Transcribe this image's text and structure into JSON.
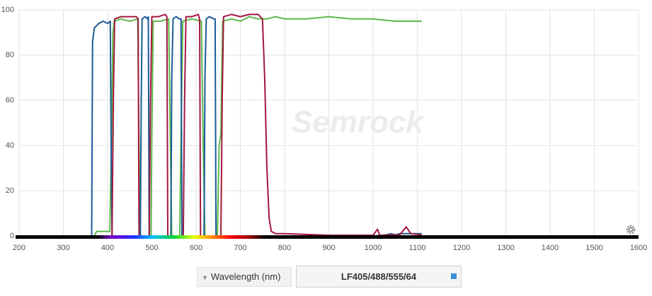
{
  "chart_data": {
    "type": "line",
    "watermark": "Semrock",
    "xlim": [
      200,
      1600
    ],
    "xticks": [
      200,
      300,
      400,
      500,
      600,
      700,
      800,
      900,
      1000,
      1100,
      1200,
      1300,
      1400,
      1500,
      1600
    ],
    "ylim": [
      0,
      100
    ],
    "yticks": [
      0,
      20,
      40,
      60,
      80,
      100
    ],
    "grid": true,
    "series": [
      {
        "color": "#5cb84a",
        "x": [
          260,
          370,
          375,
          405,
          409,
          412,
          415,
          430,
          450,
          468,
          471,
          474,
          498,
          500,
          503,
          520,
          538,
          542,
          545,
          563,
          566,
          570,
          590,
          612,
          616,
          620,
          648,
          652,
          656,
          660,
          680,
          700,
          720,
          740,
          760,
          780,
          800,
          850,
          900,
          950,
          1000,
          1050,
          1100,
          1110
        ],
        "values": [
          0,
          0,
          2,
          2,
          45,
          90,
          95,
          96,
          95,
          96,
          40,
          0,
          0,
          45,
          95,
          95,
          96,
          40,
          0,
          0,
          45,
          95,
          96,
          95,
          40,
          0,
          0,
          40,
          45,
          95,
          96,
          95,
          97,
          96,
          96,
          97,
          96,
          96,
          97,
          96,
          96,
          95,
          95,
          95
        ]
      },
      {
        "color": "#1a5a96",
        "x": [
          260,
          364,
          366,
          370,
          380,
          390,
          400,
          406,
          408,
          410,
          474,
          476,
          478,
          485,
          490,
          492,
          494,
          543,
          545,
          548,
          555,
          562,
          566,
          568,
          618,
          620,
          623,
          630,
          640,
          643,
          645,
          1000,
          1030,
          1040,
          1050,
          1060,
          1100,
          1110
        ],
        "values": [
          0,
          0,
          86,
          92,
          94,
          95,
          94,
          95,
          40,
          0,
          0,
          60,
          96,
          97,
          96,
          97,
          0,
          0,
          70,
          96,
          97,
          96,
          96,
          0,
          0,
          70,
          96,
          97,
          96,
          96,
          0,
          0,
          0.5,
          1,
          0.5,
          1,
          1,
          1
        ]
      },
      {
        "color": "#a3173f",
        "x": [
          260,
          410,
          413,
          416,
          430,
          450,
          465,
          469,
          471,
          494,
          497,
          500,
          515,
          530,
          534,
          536,
          571,
          574,
          577,
          590,
          605,
          608,
          610,
          656,
          659,
          662,
          680,
          700,
          720,
          740,
          750,
          755,
          760,
          765,
          770,
          780,
          800,
          900,
          1000,
          1010,
          1015,
          1020,
          1060,
          1075,
          1085,
          1110
        ],
        "values": [
          0,
          0,
          60,
          96,
          97,
          97,
          97,
          96,
          0,
          0,
          60,
          97,
          97,
          98,
          97,
          0,
          0,
          60,
          97,
          97,
          98,
          96,
          0,
          0,
          60,
          97,
          98,
          97,
          98,
          98,
          96,
          70,
          30,
          8,
          2,
          1,
          1,
          0.3,
          0.3,
          3,
          0.3,
          0.3,
          0.5,
          4,
          1,
          0.5
        ]
      }
    ]
  },
  "controls": {
    "axis_button": "Wavelength (nm)",
    "filter_field": "LF405/488/555/64"
  }
}
